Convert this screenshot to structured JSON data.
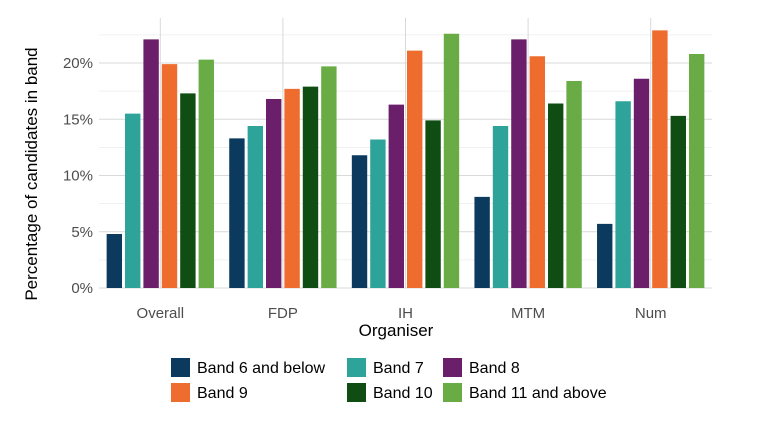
{
  "chart_data": {
    "type": "bar",
    "title": "",
    "xlabel": "Organiser",
    "ylabel": "Percentage of candidates in band",
    "categories": [
      "Overall",
      "FDP",
      "IH",
      "MTM",
      "Num"
    ],
    "ylim": [
      0,
      24
    ],
    "yticks": [
      0,
      5,
      10,
      15,
      20
    ],
    "ytick_labels": [
      "0%",
      "5%",
      "10%",
      "15%",
      "20%"
    ],
    "grid": true,
    "legend_position": "bottom",
    "series": [
      {
        "name": "Band 6 and below",
        "color": "#0b3a5e",
        "values": [
          4.8,
          13.3,
          11.8,
          8.1,
          5.7
        ]
      },
      {
        "name": "Band 7",
        "color": "#2da39a",
        "values": [
          15.5,
          14.4,
          13.2,
          14.4,
          16.6
        ]
      },
      {
        "name": "Band 8",
        "color": "#6b1f6b",
        "values": [
          22.1,
          16.8,
          16.3,
          22.1,
          18.6
        ]
      },
      {
        "name": "Band 9",
        "color": "#ef6c2f",
        "values": [
          19.9,
          17.7,
          21.1,
          20.6,
          22.9
        ]
      },
      {
        "name": "Band 10",
        "color": "#0f4d12",
        "values": [
          17.3,
          17.9,
          14.9,
          16.4,
          15.3
        ]
      },
      {
        "name": "Band 11 and above",
        "color": "#69ac45",
        "values": [
          20.3,
          19.7,
          22.6,
          18.4,
          20.8
        ]
      }
    ]
  }
}
